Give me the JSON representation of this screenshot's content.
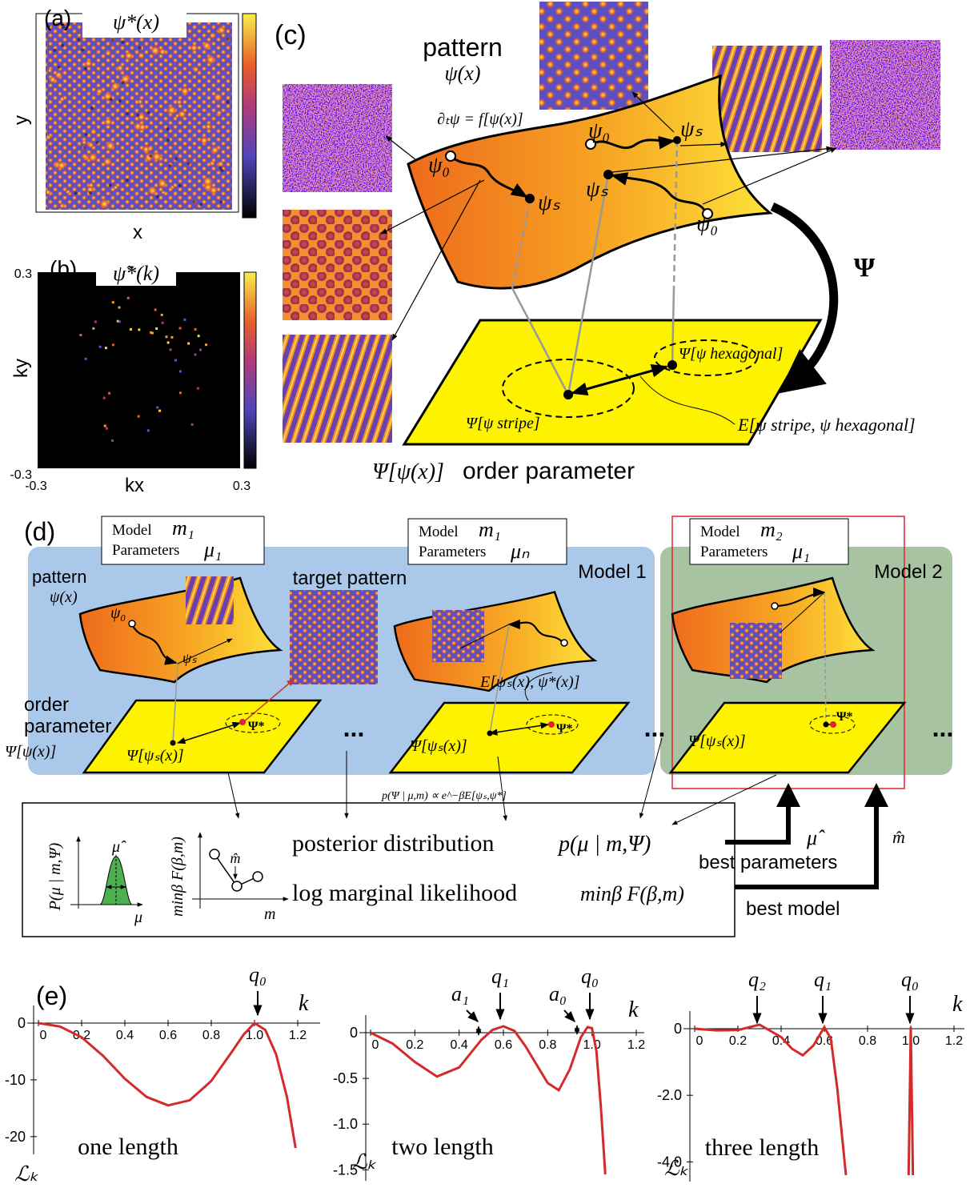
{
  "panel_a": {
    "label": "(a)",
    "title": "ψ*(x)",
    "xlabel": "x",
    "ylabel": "y"
  },
  "panel_b": {
    "label": "(b)",
    "title": "ψ̃*(k)",
    "xlabel": "kx",
    "ylabel": "ky",
    "xticks": [
      -0.3,
      0.3
    ],
    "yticks": [
      -0.3,
      0.3
    ]
  },
  "panel_c": {
    "label": "(c)",
    "pattern": "pattern",
    "pattern_symbol": "ψ(x)",
    "equation": "∂ₜψ = f[ψ(x)]",
    "psi0": "ψ₀",
    "psis": "ψₛ",
    "map": "Ψ",
    "hexagonal": "Ψ[ψ hexagonal]",
    "stripe": "Ψ[ψ stripe]",
    "energy": "E[ψ stripe, ψ hexagonal]",
    "order_symbol": "Ψ[ψ(x)]",
    "order": "order parameter"
  },
  "panel_d": {
    "label": "(d)",
    "boxes": [
      {
        "model": "Model",
        "m": "m₁",
        "parameters": "Parameters",
        "mu": "μ₁"
      },
      {
        "model": "Model",
        "m": "m₁",
        "parameters": "Parameters",
        "mu": "μₙ"
      },
      {
        "model": "Model",
        "m": "m₂",
        "parameters": "Parameters",
        "mu": "μ₁"
      }
    ],
    "group1": "Model 1",
    "group2": "Model 2",
    "pattern": "pattern",
    "pattern_symbol": "ψ(x)",
    "target": "target pattern",
    "order": "order",
    "parameter": "parameter",
    "order_symbol": "Ψ[ψ(x)]",
    "psi0": "ψ₀",
    "psis": "ψₛ",
    "psi_s_op": "Ψ[ψₛ(x)]",
    "psi_star": "Ψ*",
    "energy": "E[ψₛ(x), ψ*(x)]",
    "ellipsis": "...",
    "likelihood": "p(Ψ | μ,m) ∝ e^−βE[ψₛ,ψ*]",
    "posterior": "posterior distribution",
    "posterior_symbol": "p(μ | m,Ψ)",
    "lml": "log marginal likelihood",
    "lml_symbol": "minβ F(β,m)",
    "mu_hat": "μ̂",
    "m_hat": "m̂",
    "best_parameters": "best parameters",
    "best_model": "best model",
    "inset_p_ylabel": "P(μ | m,Ψ)",
    "inset_p_x": "μ",
    "inset_f_ylabel": "minβ F(β,m)",
    "inset_f_x": "m"
  },
  "panel_e": {
    "label": "(e)",
    "color": "#d42a2a",
    "plots": [
      {
        "type": "line",
        "xlabel": "k",
        "ylabel": "ℒₖ",
        "caption": "one length",
        "annotations": [
          "q₀"
        ],
        "xlim": [
          0,
          1.2
        ],
        "ylim": [
          -22,
          0
        ],
        "xticks": [
          0,
          0.2,
          0.4,
          0.6,
          0.8,
          {
            "value": 1,
            "label": "1.0"
          },
          1.2
        ],
        "yticks": [
          0,
          -10,
          -20
        ],
        "x": [
          0,
          0.1,
          0.2,
          0.3,
          0.4,
          0.5,
          0.6,
          0.7,
          0.8,
          0.9,
          0.95,
          1.0,
          1.05,
          1.1,
          1.15,
          1.19
        ],
        "values": [
          0,
          -0.6,
          -2.5,
          -5.8,
          -9.8,
          -13,
          -14.5,
          -13.6,
          -10.2,
          -4.8,
          -2,
          0,
          -1.2,
          -5.5,
          -13,
          -22
        ]
      },
      {
        "type": "line",
        "xlabel": "k",
        "ylabel": "ℒₖ",
        "caption": "two length",
        "annotations": [
          "a₁",
          "q₁",
          "a₀",
          "q₀"
        ],
        "xlim": [
          0,
          1.2
        ],
        "ylim": [
          -1.55,
          0
        ],
        "xticks": [
          0,
          0.2,
          0.4,
          0.6,
          0.8,
          {
            "value": 1,
            "label": "1.0"
          },
          1.2
        ],
        "yticks": [
          0,
          -0.5,
          {
            "value": -1,
            "label": "-1.0"
          },
          -1.5
        ],
        "x": [
          0,
          0.1,
          0.2,
          0.3,
          0.4,
          0.5,
          0.55,
          0.6,
          0.65,
          0.7,
          0.8,
          0.85,
          0.9,
          0.95,
          0.98,
          1.0,
          1.02,
          1.04,
          1.06
        ],
        "values": [
          0,
          -0.12,
          -0.32,
          -0.48,
          -0.38,
          -0.08,
          0.03,
          0.07,
          0.02,
          -0.15,
          -0.55,
          -0.63,
          -0.4,
          -0.05,
          0.06,
          0.05,
          -0.2,
          -0.8,
          -1.55
        ]
      },
      {
        "type": "line",
        "xlabel": "k",
        "ylabel": "ℒₖ",
        "caption": "three length",
        "annotations": [
          "q₂",
          "q₁",
          "q₀"
        ],
        "xlim": [
          0,
          1.2
        ],
        "ylim": [
          -4.4,
          0
        ],
        "xticks": [
          0,
          0.2,
          0.4,
          0.6,
          0.8,
          {
            "value": 1,
            "label": "1.0"
          },
          1.2
        ],
        "yticks": [
          0,
          {
            "value": -2,
            "label": "-2.0"
          },
          {
            "value": -4,
            "label": "-4.0"
          }
        ],
        "x": [
          0,
          0.1,
          0.2,
          0.3,
          0.4,
          0.45,
          0.5,
          0.55,
          0.6,
          0.63,
          0.66,
          0.7,
          0.85,
          0.99,
          1.0,
          1.01
        ],
        "values": [
          0,
          -0.05,
          -0.04,
          0.12,
          -0.25,
          -0.6,
          -0.8,
          -0.5,
          0.05,
          -0.3,
          -1.8,
          -4.4,
          null,
          -4.4,
          0.05,
          -4.4
        ]
      }
    ]
  }
}
